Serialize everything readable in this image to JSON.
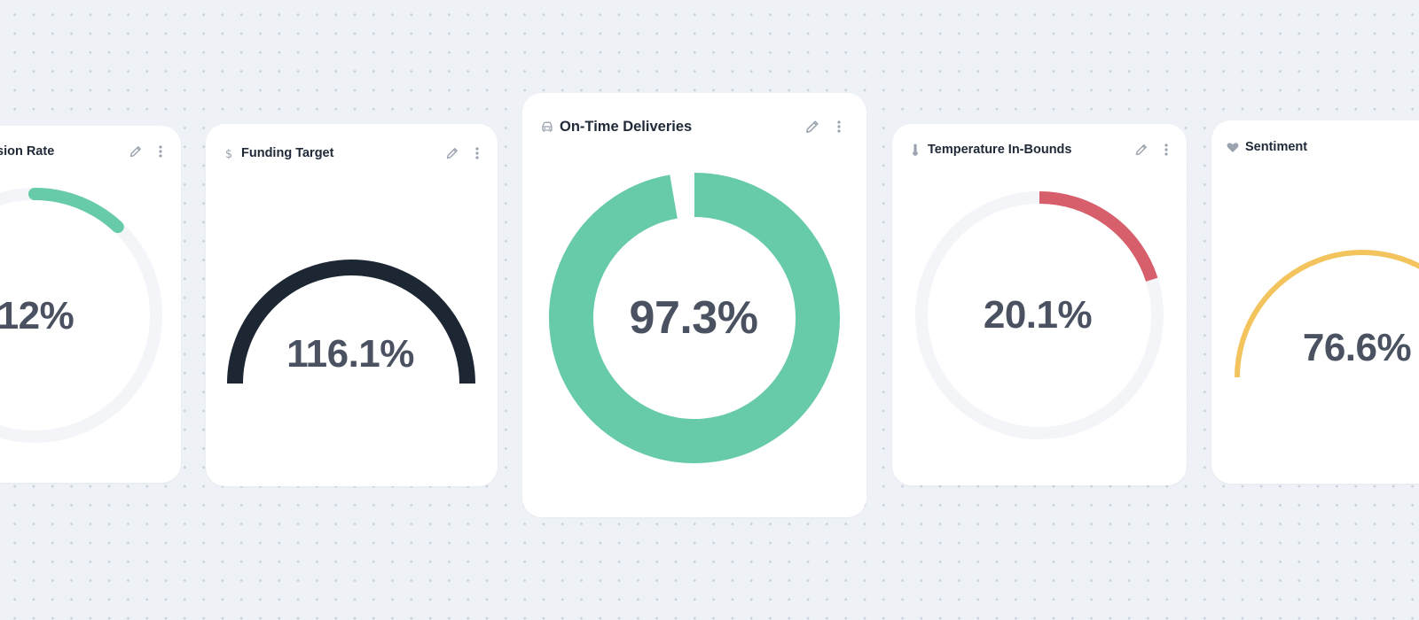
{
  "colors": {
    "background": "#eef2f7",
    "card": "#ffffff",
    "track": "#f3f5f8",
    "green": "#67cbaa",
    "navy": "#1d2734",
    "red": "#d65f6b",
    "yellow": "#f3c35d",
    "value_text": "#4a5160",
    "icon": "#9aa3af"
  },
  "cards": [
    {
      "key": "c1",
      "title": "sion Rate",
      "title_icon": "none",
      "value": "12%",
      "percent": 0.12,
      "style": "ring",
      "color": "green",
      "show_actions": true
    },
    {
      "key": "c2",
      "title": "Funding Target",
      "title_icon": "dollar-icon",
      "value": "116.1%",
      "percent": 1.161,
      "style": "semicircle",
      "color": "navy",
      "show_actions": true
    },
    {
      "key": "c3",
      "title": "On-Time Deliveries",
      "title_icon": "car-icon",
      "value": "97.3%",
      "percent": 0.973,
      "style": "donut",
      "color": "green",
      "show_actions": true
    },
    {
      "key": "c4",
      "title": "Temperature In-Bounds",
      "title_icon": "thermometer-icon",
      "value": "20.1%",
      "percent": 0.201,
      "style": "ring",
      "color": "red",
      "show_actions": true
    },
    {
      "key": "c5",
      "title": "Sentiment",
      "title_icon": "heart-icon",
      "value": "76.6%",
      "percent": 0.766,
      "style": "semicircle",
      "color": "yellow",
      "show_actions": false
    }
  ]
}
